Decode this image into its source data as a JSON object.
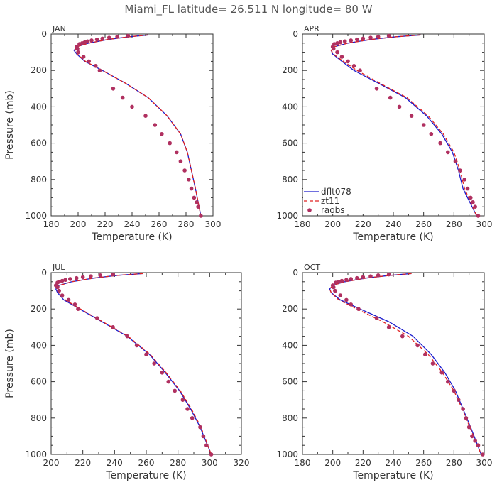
{
  "page": {
    "title": "Miami_FL   latitude= 26.511 N longitude= 80 W"
  },
  "colors": {
    "dflt078": "#1a1acc",
    "zt11": "#e02020",
    "raobs": "#b03060",
    "axis": "#333333"
  },
  "legend": {
    "placement": "bottom-left of APR panel",
    "entries": [
      {
        "key": "dflt078",
        "label": "dflt078"
      },
      {
        "key": "zt11",
        "label": "zt11"
      },
      {
        "key": "raobs",
        "label": "raobs"
      }
    ]
  },
  "chart_data": [
    {
      "type": "line",
      "panel": "JAN",
      "xlabel": "Temperature (K)",
      "ylabel": "Pressure (mb)",
      "xlim": [
        180,
        300
      ],
      "ylim": [
        1000,
        0
      ],
      "xticks": [
        180,
        200,
        220,
        240,
        260,
        280,
        300
      ],
      "yticks": [
        0,
        200,
        400,
        600,
        800,
        1000
      ],
      "series": [
        {
          "name": "dflt078",
          "x": [
            252,
            238,
            222,
            208,
            199,
            197,
            199,
            205,
            218,
            235,
            252,
            266,
            276,
            281,
            284,
            287,
            291
          ],
          "y": [
            5,
            15,
            30,
            50,
            70,
            90,
            110,
            150,
            200,
            270,
            350,
            450,
            550,
            650,
            750,
            850,
            1000
          ]
        },
        {
          "name": "zt11",
          "x": [
            252,
            238,
            222,
            208,
            199,
            197.5,
            199.5,
            205.5,
            218,
            235,
            252,
            266,
            276,
            281,
            284,
            287,
            291
          ],
          "y": [
            5,
            15,
            30,
            50,
            70,
            90,
            110,
            150,
            200,
            270,
            350,
            450,
            550,
            650,
            750,
            850,
            1000
          ]
        },
        {
          "name": "raobs",
          "x": [
            237,
            229,
            223,
            218,
            214,
            210,
            207,
            205,
            203,
            201,
            199,
            199.5,
            200,
            204,
            208,
            213,
            216,
            226,
            233,
            240,
            250,
            257,
            262,
            268,
            273,
            276,
            279,
            282,
            284,
            286,
            288,
            289,
            291
          ],
          "y": [
            10,
            15,
            20,
            25,
            30,
            35,
            40,
            45,
            50,
            55,
            70,
            80,
            100,
            125,
            150,
            175,
            200,
            300,
            350,
            400,
            450,
            500,
            550,
            600,
            650,
            700,
            750,
            800,
            850,
            900,
            925,
            950,
            1000
          ]
        }
      ]
    },
    {
      "type": "line",
      "panel": "APR",
      "xlabel": "Temperature (K)",
      "ylabel": "",
      "xlim": [
        180,
        300
      ],
      "ylim": [
        1000,
        0
      ],
      "xticks": [
        180,
        200,
        220,
        240,
        260,
        280,
        300
      ],
      "yticks": [
        0,
        200,
        400,
        600,
        800,
        1000
      ],
      "series": [
        {
          "name": "dflt078",
          "x": [
            258,
            242,
            225,
            210,
            201,
            199,
            200,
            206,
            214,
            230,
            248,
            262,
            272,
            279,
            283,
            286,
            295
          ],
          "y": [
            5,
            15,
            30,
            50,
            70,
            90,
            110,
            150,
            200,
            270,
            350,
            450,
            550,
            650,
            750,
            850,
            1000
          ]
        },
        {
          "name": "zt11",
          "x": [
            258,
            242,
            225,
            210,
            201,
            199,
            200.5,
            207,
            216,
            231,
            249,
            263,
            273,
            280,
            284,
            287,
            295
          ],
          "y": [
            5,
            15,
            30,
            50,
            70,
            90,
            110,
            150,
            200,
            270,
            350,
            450,
            550,
            650,
            750,
            850,
            1000
          ]
        },
        {
          "name": "raobs",
          "x": [
            237,
            230,
            225,
            220,
            216,
            212,
            208,
            205,
            203,
            201,
            200,
            200.5,
            203,
            206,
            210,
            214,
            218,
            229,
            238,
            244,
            252,
            260,
            265,
            271,
            276,
            281,
            284,
            287,
            289,
            291,
            292.5,
            294,
            296
          ],
          "y": [
            10,
            15,
            20,
            25,
            30,
            35,
            40,
            45,
            50,
            55,
            70,
            80,
            100,
            125,
            150,
            175,
            200,
            300,
            350,
            400,
            450,
            500,
            550,
            600,
            650,
            700,
            750,
            800,
            850,
            900,
            925,
            950,
            1000
          ]
        }
      ]
    },
    {
      "type": "line",
      "panel": "JUL",
      "xlabel": "Temperature (K)",
      "ylabel": "Pressure (mb)",
      "xlim": [
        200,
        320
      ],
      "ylim": [
        1000,
        0
      ],
      "xticks": [
        200,
        220,
        240,
        260,
        280,
        300,
        320
      ],
      "yticks": [
        0,
        200,
        400,
        600,
        800,
        1000
      ],
      "series": [
        {
          "name": "dflt078",
          "x": [
            258,
            242,
            227,
            213,
            205,
            203,
            204,
            208,
            218,
            232,
            248,
            262,
            272,
            281,
            288,
            294,
            301
          ],
          "y": [
            5,
            15,
            30,
            50,
            70,
            90,
            110,
            150,
            200,
            270,
            350,
            450,
            550,
            650,
            750,
            850,
            1000
          ]
        },
        {
          "name": "zt11",
          "x": [
            258,
            242,
            227,
            213,
            205.5,
            203.5,
            205,
            209,
            218.5,
            232.5,
            248.5,
            262.5,
            272.5,
            281.5,
            288.5,
            294.5,
            301
          ],
          "y": [
            5,
            15,
            30,
            50,
            70,
            90,
            110,
            150,
            200,
            270,
            350,
            450,
            550,
            650,
            750,
            850,
            1000
          ]
        },
        {
          "name": "raobs",
          "x": [
            239,
            231,
            225,
            220,
            216,
            212,
            209,
            207,
            205,
            204,
            203,
            204,
            205,
            207,
            211,
            215,
            217,
            229,
            239,
            248,
            254,
            260,
            265,
            270,
            274,
            278,
            283,
            286,
            289,
            294,
            296,
            298,
            301
          ],
          "y": [
            10,
            15,
            20,
            25,
            30,
            35,
            40,
            45,
            50,
            55,
            70,
            80,
            100,
            125,
            150,
            175,
            200,
            250,
            300,
            350,
            400,
            450,
            500,
            550,
            600,
            650,
            700,
            750,
            800,
            850,
            900,
            950,
            1000
          ]
        }
      ]
    },
    {
      "type": "line",
      "panel": "OCT",
      "xlabel": "Temperature (K)",
      "ylabel": "",
      "xlim": [
        180,
        300
      ],
      "ylim": [
        1000,
        0
      ],
      "xticks": [
        180,
        200,
        220,
        240,
        260,
        280,
        300
      ],
      "yticks": [
        0,
        200,
        400,
        600,
        800,
        1000
      ],
      "series": [
        {
          "name": "dflt078",
          "x": [
            252,
            238,
            222,
            208,
            200,
            198,
            199,
            205,
            218,
            237,
            253,
            265,
            274,
            281,
            286,
            291,
            298
          ],
          "y": [
            5,
            15,
            30,
            50,
            70,
            90,
            110,
            150,
            200,
            270,
            350,
            450,
            550,
            650,
            750,
            850,
            1000
          ]
        },
        {
          "name": "zt11",
          "x": [
            252,
            238,
            222,
            208,
            200,
            198,
            199,
            204,
            216,
            233,
            250,
            263,
            272.5,
            280,
            285.5,
            290.5,
            298
          ],
          "y": [
            5,
            15,
            30,
            50,
            70,
            90,
            110,
            150,
            200,
            270,
            350,
            450,
            550,
            650,
            750,
            850,
            1000
          ]
        },
        {
          "name": "raobs",
          "x": [
            237,
            230,
            225,
            220,
            216,
            212,
            209,
            206,
            204,
            202,
            200,
            200.5,
            201.5,
            205,
            209,
            212,
            217,
            229,
            237,
            246,
            256,
            261,
            266,
            272,
            276,
            280,
            283,
            286,
            288,
            290,
            292,
            294,
            296,
            299
          ],
          "y": [
            10,
            15,
            20,
            25,
            30,
            35,
            40,
            45,
            50,
            55,
            70,
            80,
            100,
            125,
            150,
            175,
            200,
            250,
            300,
            350,
            400,
            450,
            500,
            550,
            600,
            650,
            700,
            750,
            800,
            850,
            900,
            925,
            950,
            1000
          ]
        }
      ]
    }
  ]
}
